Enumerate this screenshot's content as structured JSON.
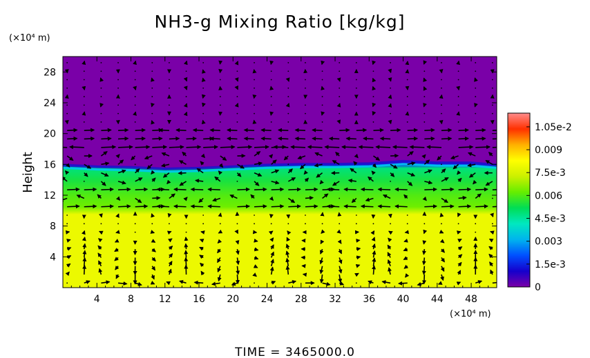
{
  "chart_data": {
    "type": "heatmap",
    "title": "NH3-g Mixing Ratio [kg/kg]",
    "ylabel": "Height",
    "x_unit": "(×10⁴ m)",
    "y_unit": "(×10⁴ m)",
    "footer": "TIME  =  3465000.0",
    "xlim": [
      0,
      51
    ],
    "ylim": [
      0,
      30
    ],
    "x_ticks": [
      "4",
      "8",
      "12",
      "16",
      "20",
      "24",
      "28",
      "32",
      "36",
      "40",
      "44",
      "48"
    ],
    "y_ticks": [
      "4",
      "8",
      "12",
      "16",
      "20",
      "24",
      "28"
    ],
    "colorbar": {
      "min": 0,
      "max": 0.0114,
      "tick_values": [
        0,
        0.0015,
        0.003,
        0.0045,
        0.006,
        0.0075,
        0.009,
        0.0105
      ],
      "tick_labels": [
        "0",
        "1.5e-3",
        "0.003",
        "4.5e-3",
        "0.006",
        "7.5e-3",
        "0.009",
        "1.05e-2"
      ],
      "colormap": [
        "#7a00a8",
        "#1500cc",
        "#0050ff",
        "#00b4ee",
        "#00e8c0",
        "#00dd55",
        "#66ee00",
        "#ccf000",
        "#ffff00",
        "#ffb000",
        "#ff3000",
        "#ff8c8c"
      ]
    },
    "field_profile": [
      {
        "height": 0,
        "value": 0.0079
      },
      {
        "height": 9.5,
        "value": 0.0079
      },
      {
        "height": 10.5,
        "value": 0.0063
      },
      {
        "height": 12.0,
        "value": 0.006
      },
      {
        "height": 14.0,
        "value": 0.0054
      },
      {
        "height": 15.5,
        "value": 0.0048
      },
      {
        "height": 16.0,
        "value": 0.0018
      },
      {
        "height": 16.6,
        "value": 0.0
      },
      {
        "height": 30,
        "value": 0.0
      }
    ],
    "interface_height": [
      {
        "x": 0,
        "y": 15.9
      },
      {
        "x": 4,
        "y": 15.7
      },
      {
        "x": 8,
        "y": 15.6
      },
      {
        "x": 12,
        "y": 15.4
      },
      {
        "x": 16,
        "y": 15.5
      },
      {
        "x": 20,
        "y": 15.7
      },
      {
        "x": 24,
        "y": 15.9
      },
      {
        "x": 28,
        "y": 16.0
      },
      {
        "x": 32,
        "y": 16.0
      },
      {
        "x": 36,
        "y": 16.1
      },
      {
        "x": 40,
        "y": 16.4
      },
      {
        "x": 44,
        "y": 16.2
      },
      {
        "x": 48,
        "y": 16.2
      },
      {
        "x": 51,
        "y": 15.9
      }
    ],
    "wind_vectors": "quiver overlay of wind vectors in the x–height plane"
  }
}
